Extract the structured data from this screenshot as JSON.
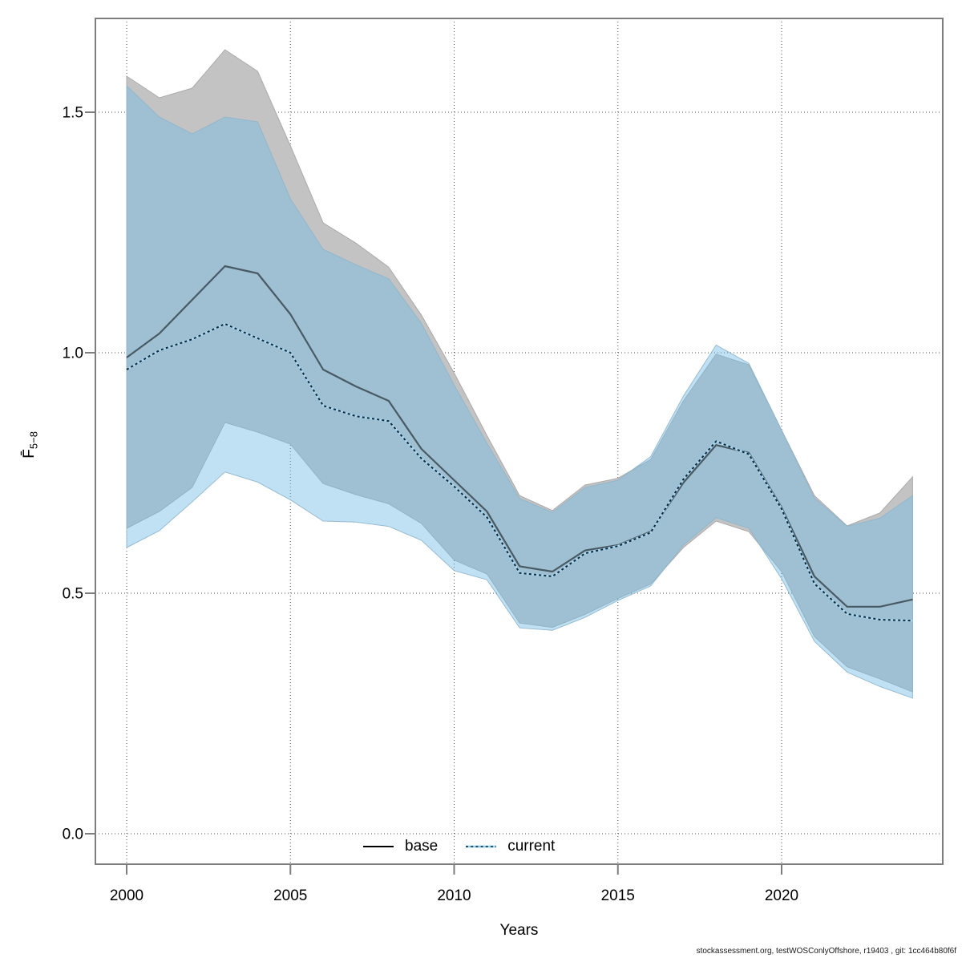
{
  "footer": {
    "text": "stockassessment.org, testWOSConlyOffshore, r19403 , git: 1cc464b80f6f"
  },
  "chart_data": {
    "type": "area",
    "title": "",
    "xlabel": "Years",
    "ylabel": "F̄",
    "ylabel_sub": "5−8",
    "grid": "dotted",
    "xlim": [
      1999.05,
      2024.95
    ],
    "ylim": [
      -0.063,
      1.695
    ],
    "x_tick_values": [
      2000,
      2005,
      2010,
      2015,
      2020
    ],
    "x_tick_labels": [
      "2000",
      "2005",
      "2010",
      "2015",
      "2020"
    ],
    "y_tick_values": [
      0.0,
      0.5,
      1.0,
      1.5
    ],
    "y_tick_labels": [
      "0.0",
      "0.5",
      "1.0",
      "1.5"
    ],
    "legend": {
      "position": "bottom-center-inside",
      "entries": [
        {
          "label": "base",
          "style": "solid",
          "color": "#000000"
        },
        {
          "label": "current",
          "style": "dotted",
          "color": "#23506b",
          "halo_color": "#9fd0e8"
        }
      ]
    },
    "years": [
      2000,
      2001,
      2002,
      2003,
      2004,
      2005,
      2006,
      2007,
      2008,
      2009,
      2010,
      2011,
      2012,
      2013,
      2014,
      2015,
      2016,
      2017,
      2018,
      2019,
      2020,
      2021,
      2022,
      2023,
      2024
    ],
    "series": [
      {
        "name": "base",
        "line_style": "solid",
        "line_color": "#485a64",
        "band_color": "#c3c3c3",
        "band_edge_color": "#ababab",
        "mid": [
          0.99,
          1.04,
          1.11,
          1.18,
          1.165,
          1.08,
          0.965,
          0.93,
          0.9,
          0.8,
          0.735,
          0.67,
          0.556,
          0.545,
          0.589,
          0.6,
          0.628,
          0.73,
          0.808,
          0.792,
          0.678,
          0.535,
          0.472,
          0.472,
          0.487
        ],
        "lo": [
          0.635,
          0.67,
          0.72,
          0.855,
          0.835,
          0.81,
          0.728,
          0.705,
          0.686,
          0.645,
          0.569,
          0.54,
          0.438,
          0.429,
          0.456,
          0.489,
          0.519,
          0.595,
          0.65,
          0.628,
          0.545,
          0.41,
          0.347,
          0.322,
          0.295
        ],
        "hi": [
          1.575,
          1.53,
          1.55,
          1.63,
          1.585,
          1.43,
          1.27,
          1.228,
          1.178,
          1.078,
          0.958,
          0.828,
          0.703,
          0.672,
          0.725,
          0.739,
          0.778,
          0.9,
          0.997,
          0.975,
          0.839,
          0.703,
          0.64,
          0.667,
          0.742
        ]
      },
      {
        "name": "current",
        "line_style": "dotted",
        "line_color": "#0e2a3a",
        "line_halo_color": "#a8d4ee",
        "band_color": "#74bbe5",
        "band_opacity": 0.45,
        "band_edge_color": "#8fb6cc",
        "mid": [
          0.965,
          1.005,
          1.028,
          1.06,
          1.03,
          1.0,
          0.89,
          0.868,
          0.858,
          0.78,
          0.722,
          0.658,
          0.542,
          0.535,
          0.583,
          0.598,
          0.626,
          0.737,
          0.816,
          0.789,
          0.675,
          0.52,
          0.457,
          0.445,
          0.443
        ],
        "lo": [
          0.595,
          0.63,
          0.69,
          0.752,
          0.731,
          0.694,
          0.65,
          0.648,
          0.639,
          0.61,
          0.547,
          0.528,
          0.428,
          0.423,
          0.45,
          0.485,
          0.515,
          0.6,
          0.657,
          0.635,
          0.53,
          0.4,
          0.336,
          0.306,
          0.282
        ],
        "hi": [
          1.555,
          1.49,
          1.455,
          1.49,
          1.48,
          1.32,
          1.215,
          1.183,
          1.154,
          1.061,
          0.933,
          0.812,
          0.697,
          0.668,
          0.72,
          0.735,
          0.784,
          0.91,
          1.016,
          0.978,
          0.839,
          0.698,
          0.639,
          0.656,
          0.703
        ]
      }
    ],
    "style_colors": {
      "grid": "#4d4d4d",
      "border": "#7d7d7d",
      "tick": "#7d7d7d",
      "tick_label": "#000000"
    }
  }
}
